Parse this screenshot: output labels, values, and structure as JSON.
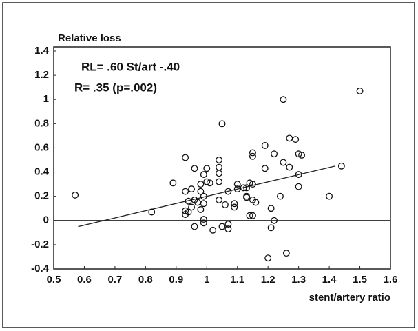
{
  "chart_data": {
    "type": "scatter",
    "title": "Relative loss",
    "x_label": "stent/artery ratio",
    "annotations": [
      "RL= .60 St/art  -.40",
      "R= .35 (p=.002)"
    ],
    "xlim": [
      0.5,
      1.6
    ],
    "ylim": [
      -0.4,
      1.4
    ],
    "xticks": [
      0.5,
      0.6,
      0.7,
      0.8,
      0.9,
      1,
      1.1,
      1.2,
      1.3,
      1.4,
      1.5,
      1.6
    ],
    "yticks": [
      1.4,
      1.2,
      1,
      0.8,
      0.6,
      0.4,
      0.2,
      0,
      -0.2,
      -0.4
    ],
    "reference_line": 0,
    "fit_line": {
      "x": [
        0.58,
        1.42
      ],
      "values": [
        -0.05,
        0.45
      ]
    },
    "color": "#111111",
    "series": [
      {
        "x": [
          0.57,
          0.82,
          0.89,
          0.93,
          0.93,
          0.93,
          0.94,
          0.93,
          0.95,
          0.95,
          0.94,
          0.96,
          0.96,
          0.96,
          0.97,
          0.98,
          0.98,
          0.98,
          0.99,
          1.0,
          0.99,
          0.99,
          0.99,
          0.99,
          1.0,
          1.01,
          1.02,
          1.04,
          1.04,
          1.04,
          1.04,
          1.04,
          1.05,
          1.06,
          1.05,
          1.07,
          1.07,
          1.07,
          1.09,
          1.09,
          1.1,
          1.1,
          1.12,
          1.13,
          1.13,
          1.13,
          1.14,
          1.15,
          1.15,
          1.15,
          1.14,
          1.15,
          1.16,
          1.15,
          1.19,
          1.19,
          1.21,
          1.2,
          1.21,
          1.22,
          1.22,
          1.24,
          1.25,
          1.26,
          1.25,
          1.27,
          1.27,
          1.29,
          1.3,
          1.3,
          1.3,
          1.31,
          1.4,
          1.44,
          1.5
        ],
        "values": [
          0.21,
          0.07,
          0.31,
          0.52,
          0.08,
          0.05,
          0.16,
          0.24,
          0.26,
          0.11,
          0.07,
          0.43,
          -0.05,
          0.17,
          0.15,
          0.3,
          0.24,
          0.09,
          0.38,
          0.43,
          0.2,
          0.14,
          0.01,
          -0.02,
          0.32,
          0.31,
          -0.08,
          0.5,
          0.39,
          0.44,
          0.32,
          0.17,
          0.8,
          0.13,
          -0.05,
          -0.03,
          -0.07,
          0.24,
          0.11,
          0.14,
          0.3,
          0.26,
          0.27,
          0.19,
          0.2,
          0.27,
          0.31,
          0.3,
          0.56,
          0.53,
          0.04,
          0.04,
          0.15,
          0.17,
          0.62,
          0.43,
          0.1,
          -0.31,
          -0.06,
          0.0,
          0.55,
          0.2,
          1.0,
          -0.27,
          0.48,
          0.44,
          0.68,
          0.67,
          0.28,
          0.38,
          0.55,
          0.54,
          0.2,
          0.45,
          1.07
        ]
      }
    ]
  }
}
